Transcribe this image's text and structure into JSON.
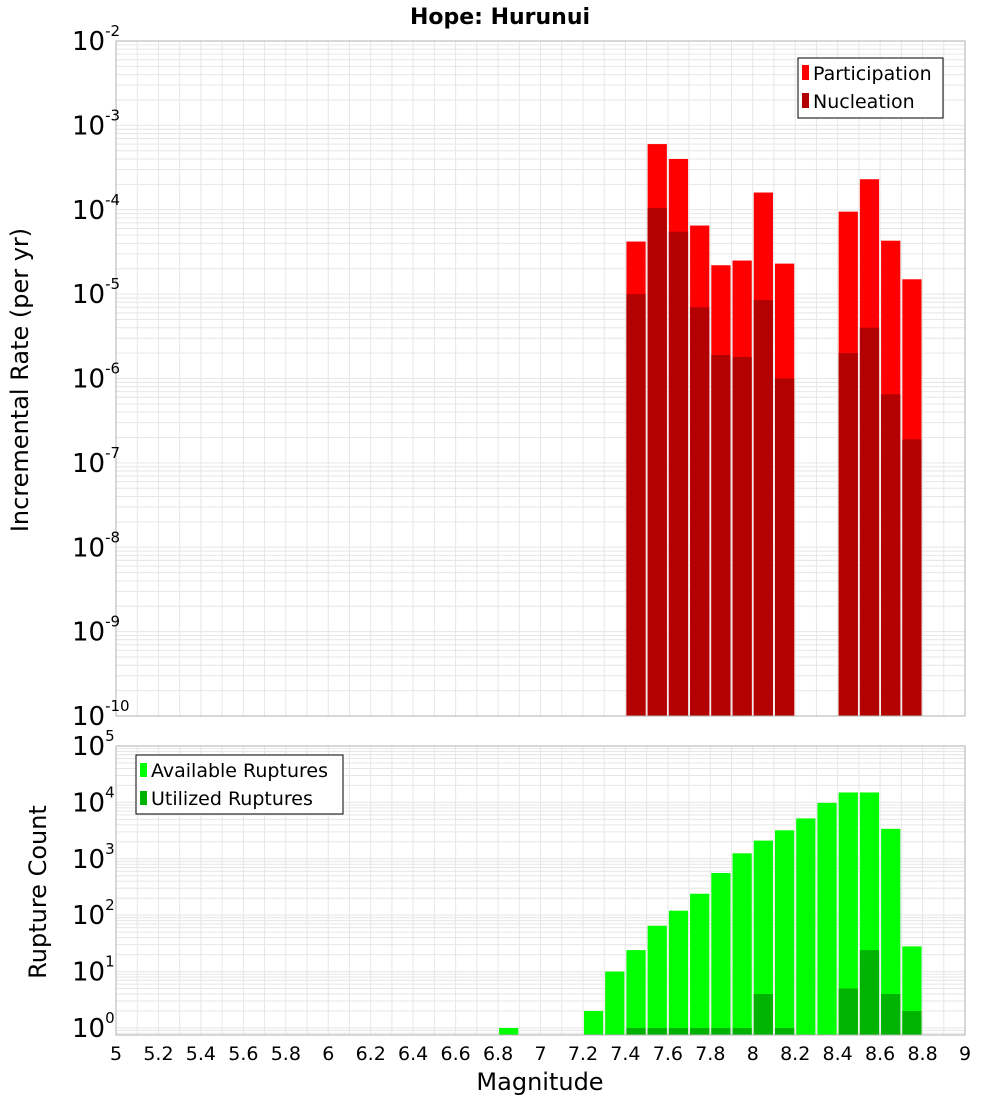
{
  "chart_data": [
    {
      "type": "bar",
      "title": "Hope: Hurunui",
      "ylabel": "Incremental Rate (per yr)",
      "xlabel": "",
      "xlim": [
        5,
        9
      ],
      "ylim": [
        1e-10,
        0.01
      ],
      "yscale": "log",
      "bin_width": 0.1,
      "grid": true,
      "legend_position": "top-right",
      "y_ticks": [
        {
          "base": "10",
          "exp": "-10"
        },
        {
          "base": "10",
          "exp": "-9"
        },
        {
          "base": "10",
          "exp": "-8"
        },
        {
          "base": "10",
          "exp": "-7"
        },
        {
          "base": "10",
          "exp": "-6"
        },
        {
          "base": "10",
          "exp": "-5"
        },
        {
          "base": "10",
          "exp": "-4"
        },
        {
          "base": "10",
          "exp": "-3"
        },
        {
          "base": "10",
          "exp": "-2"
        }
      ],
      "series": [
        {
          "name": "Participation",
          "color": "#ff0000",
          "x": [
            7.45,
            7.55,
            7.65,
            7.75,
            7.85,
            7.95,
            8.05,
            8.15,
            8.45,
            8.55,
            8.65,
            8.75
          ],
          "values": [
            4.2e-05,
            0.0006,
            0.0004,
            6.5e-05,
            2.2e-05,
            2.5e-05,
            0.00016,
            2.3e-05,
            9.5e-05,
            0.00023,
            4.3e-05,
            1.5e-05
          ]
        },
        {
          "name": "Nucleation",
          "color": "#b30000",
          "x": [
            7.45,
            7.55,
            7.65,
            7.75,
            7.85,
            7.95,
            8.05,
            8.15,
            8.45,
            8.55,
            8.65,
            8.75
          ],
          "values": [
            1e-05,
            0.000105,
            5.5e-05,
            7e-06,
            1.9e-06,
            1.8e-06,
            8.5e-06,
            1e-06,
            2e-06,
            4e-06,
            6.5e-07,
            1.9e-07
          ]
        }
      ]
    },
    {
      "type": "bar",
      "title": "",
      "ylabel": "Rupture Count",
      "xlabel": "Magnitude",
      "xlim": [
        5,
        9
      ],
      "ylim": [
        0.75,
        100000.0
      ],
      "yscale": "log",
      "bin_width": 0.1,
      "grid": true,
      "legend_position": "top-left",
      "x_ticks": [
        "5",
        "5.2",
        "5.4",
        "5.6",
        "5.8",
        "6",
        "6.2",
        "6.4",
        "6.6",
        "6.8",
        "7",
        "7.2",
        "7.4",
        "7.6",
        "7.8",
        "8",
        "8.2",
        "8.4",
        "8.6",
        "8.8",
        "9"
      ],
      "y_ticks": [
        {
          "base": "10",
          "exp": "0",
          "value": 1
        },
        {
          "base": "10",
          "exp": "1",
          "value": 10
        },
        {
          "base": "10",
          "exp": "2",
          "value": 100
        },
        {
          "base": "10",
          "exp": "3",
          "value": 1000
        },
        {
          "base": "10",
          "exp": "4",
          "value": 10000
        },
        {
          "base": "10",
          "exp": "5",
          "value": 100000
        }
      ],
      "series": [
        {
          "name": "Available Ruptures",
          "color": "#00ff00",
          "x": [
            6.85,
            7.25,
            7.35,
            7.45,
            7.55,
            7.65,
            7.75,
            7.85,
            7.95,
            8.05,
            8.15,
            8.25,
            8.35,
            8.45,
            8.55,
            8.65,
            8.75
          ],
          "values": [
            1,
            2,
            10,
            24,
            65,
            120,
            240,
            560,
            1250,
            2100,
            3200,
            5200,
            9800,
            15000,
            15000,
            3400,
            28
          ]
        },
        {
          "name": "Utilized Ruptures",
          "color": "#00b300",
          "x": [
            7.45,
            7.55,
            7.65,
            7.75,
            7.85,
            7.95,
            8.05,
            8.15,
            8.45,
            8.55,
            8.65,
            8.75
          ],
          "values": [
            1,
            1,
            1,
            1,
            1,
            1,
            4,
            1,
            5,
            24,
            4,
            2
          ]
        }
      ]
    }
  ]
}
